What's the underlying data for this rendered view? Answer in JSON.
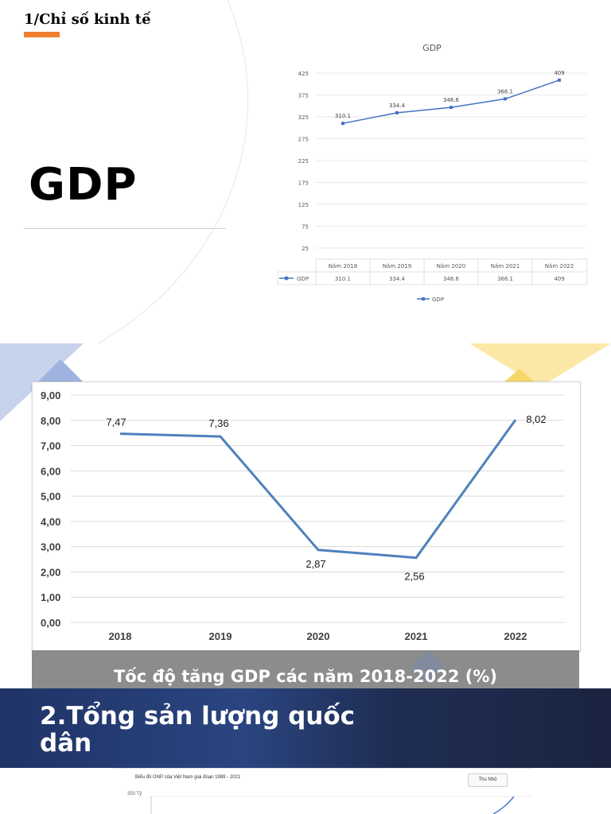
{
  "slide1": {
    "section_heading": "1/Chỉ số kinh tế",
    "title": "GDP",
    "accent_color": "#ef7d2d"
  },
  "gdp_chart": {
    "title": "GDP",
    "yticks": [
      "425",
      "375",
      "325",
      "275",
      "225",
      "175",
      "125",
      "75",
      "25"
    ],
    "table_header": [
      "Năm 2018",
      "Năm 2019",
      "Năm 2020",
      "Năm 2021",
      "Năm 2022"
    ],
    "series_label": "GDP",
    "table_values": [
      "310.1",
      "334.4",
      "346.6",
      "366.1",
      "409"
    ],
    "legend_label": "GDP",
    "line_color": "#4472c4"
  },
  "growth_chart": {
    "yticks": [
      "9,00",
      "8,00",
      "7,00",
      "6,00",
      "5,00",
      "4,00",
      "3,00",
      "2,00",
      "1,00",
      "0,00"
    ],
    "xticks": [
      "2018",
      "2019",
      "2020",
      "2021",
      "2022"
    ],
    "data_labels": [
      "7,47",
      "7,36",
      "2,87",
      "2,56",
      "8,02"
    ],
    "caption": "Tốc độ tăng GDP các năm 2018-2022 (%)",
    "line_color": "#4f81bd"
  },
  "section2": {
    "title": "2.Tổng sản lượng quốc dân"
  },
  "gnp_preview": {
    "title": "Biểu đồ GNP của Việt Nam giai đoạn 1989 - 2021",
    "button": "Thu Nhỏ",
    "ytick": "350 Tỷ"
  },
  "chart_data": [
    {
      "type": "line",
      "title": "GDP",
      "categories": [
        "Năm 2018",
        "Năm 2019",
        "Năm 2020",
        "Năm 2021",
        "Năm 2022"
      ],
      "series": [
        {
          "name": "GDP",
          "values": [
            310.1,
            334.4,
            346.6,
            366.1,
            409
          ]
        }
      ],
      "ylim": [
        25,
        425
      ],
      "grid": true,
      "legend": "bottom"
    },
    {
      "type": "line",
      "title": "Tốc độ tăng GDP các năm 2018-2022 (%)",
      "categories": [
        "2018",
        "2019",
        "2020",
        "2021",
        "2022"
      ],
      "series": [
        {
          "values": [
            7.47,
            7.36,
            2.87,
            2.56,
            8.02
          ]
        }
      ],
      "ylim": [
        0,
        9
      ],
      "grid": true
    }
  ]
}
